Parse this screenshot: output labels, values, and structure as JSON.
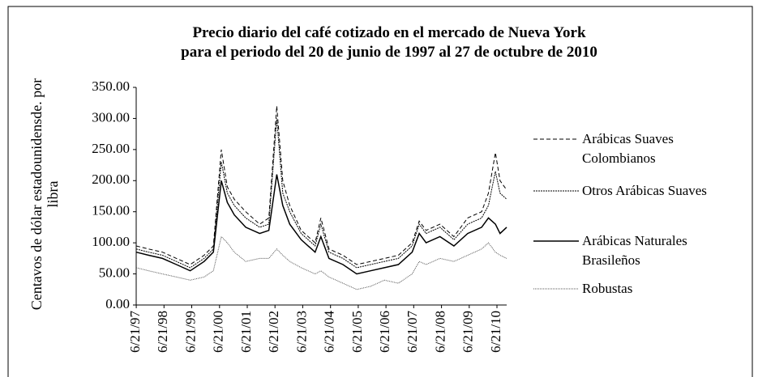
{
  "chart_data": {
    "type": "line",
    "title": [
      "Precio diario del café cotizado en el mercado de Nueva York",
      "para el periodo del 20 de junio de 1997 al 27 de octubre de 2010"
    ],
    "ylabel": "Centavos de dólar estadounidensde. por libra",
    "x": [
      "1997-06-20",
      "1997-12-01",
      "1998-06-01",
      "1998-12-01",
      "1999-06-01",
      "1999-12-01",
      "2000-04-01",
      "2000-07-15",
      "2000-10-01",
      "2001-01-01",
      "2001-06-01",
      "2001-12-01",
      "2002-04-01",
      "2002-07-15",
      "2002-10-01",
      "2003-01-01",
      "2003-06-01",
      "2003-12-01",
      "2004-02-15",
      "2004-06-01",
      "2004-12-01",
      "2005-06-01",
      "2005-12-01",
      "2006-06-01",
      "2006-12-01",
      "2007-06-01",
      "2007-09-01",
      "2007-12-01",
      "2008-06-01",
      "2008-12-01",
      "2009-06-01",
      "2009-12-01",
      "2010-03-01",
      "2010-06-01",
      "2010-08-01",
      "2010-10-27"
    ],
    "series": [
      {
        "name": "Arábicas Suaves Colombianos",
        "color": "#000000",
        "dash": "5,3",
        "width": 1,
        "values": [
          95,
          90,
          85,
          75,
          65,
          80,
          95,
          250,
          190,
          170,
          150,
          130,
          140,
          320,
          200,
          160,
          120,
          100,
          140,
          90,
          80,
          65,
          70,
          75,
          80,
          100,
          135,
          120,
          130,
          110,
          140,
          150,
          180,
          245,
          200,
          185
        ]
      },
      {
        "name": "Otros Arábicas Suaves",
        "color": "#000000",
        "dash": "2,1",
        "width": 1,
        "values": [
          90,
          85,
          80,
          70,
          60,
          75,
          90,
          230,
          180,
          160,
          140,
          125,
          130,
          300,
          180,
          150,
          115,
          95,
          130,
          85,
          75,
          60,
          65,
          70,
          75,
          95,
          130,
          115,
          125,
          105,
          130,
          140,
          160,
          215,
          180,
          170
        ]
      },
      {
        "name": "Arábicas Naturales Brasileños",
        "color": "#000000",
        "dash": "none",
        "width": 1.5,
        "values": [
          85,
          80,
          75,
          65,
          55,
          70,
          85,
          200,
          165,
          145,
          125,
          115,
          120,
          210,
          160,
          130,
          105,
          85,
          110,
          75,
          65,
          50,
          55,
          60,
          65,
          85,
          115,
          100,
          110,
          95,
          115,
          125,
          140,
          130,
          115,
          125
        ]
      },
      {
        "name": "Robustas",
        "color": "#555555",
        "dash": "1,1",
        "width": 1,
        "values": [
          60,
          55,
          50,
          45,
          40,
          45,
          55,
          110,
          100,
          85,
          70,
          75,
          75,
          90,
          80,
          70,
          60,
          50,
          55,
          45,
          35,
          25,
          30,
          40,
          35,
          50,
          70,
          65,
          75,
          70,
          80,
          90,
          100,
          85,
          80,
          75
        ]
      }
    ],
    "xlim": [
      "1997-06-20",
      "2010-10-27"
    ],
    "xticks": [
      {
        "value": "1997-06-21",
        "label": "6/21/97"
      },
      {
        "value": "1998-06-21",
        "label": "6/21/98"
      },
      {
        "value": "1999-06-21",
        "label": "6/21/99"
      },
      {
        "value": "2000-06-21",
        "label": "6/21/00"
      },
      {
        "value": "2001-06-21",
        "label": "6/21/01"
      },
      {
        "value": "2002-06-21",
        "label": "6/21/02"
      },
      {
        "value": "2003-06-21",
        "label": "6/21/03"
      },
      {
        "value": "2004-06-21",
        "label": "6/21/04"
      },
      {
        "value": "2005-06-21",
        "label": "6/21/05"
      },
      {
        "value": "2006-06-21",
        "label": "6/21/06"
      },
      {
        "value": "2007-06-21",
        "label": "6/21/07"
      },
      {
        "value": "2008-06-21",
        "label": "6/21/08"
      },
      {
        "value": "2009-06-21",
        "label": "6/21/09"
      },
      {
        "value": "2010-06-21",
        "label": "6/21/10"
      }
    ],
    "ylim": [
      0,
      350
    ],
    "yticks": [
      {
        "value": 0,
        "label": "0.00"
      },
      {
        "value": 50,
        "label": "50.00"
      },
      {
        "value": 100,
        "label": "100.00"
      },
      {
        "value": 150,
        "label": "150.00"
      },
      {
        "value": 200,
        "label": "200.00"
      },
      {
        "value": 250,
        "label": "250.00"
      },
      {
        "value": 300,
        "label": "300.00"
      },
      {
        "value": 350,
        "label": "350.00"
      }
    ],
    "grid": false,
    "legend": "right"
  }
}
